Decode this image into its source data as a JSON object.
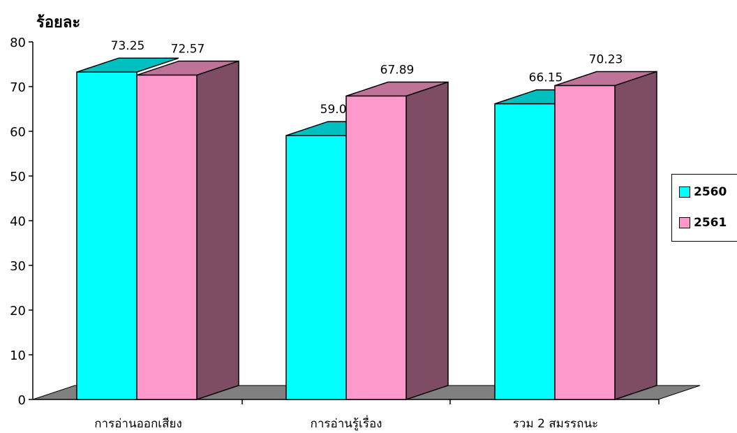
{
  "chart_data": {
    "type": "bar",
    "ylabel": "ร้อยละ",
    "ylim": [
      0,
      80
    ],
    "yticks": [
      0,
      10,
      20,
      30,
      40,
      50,
      60,
      70,
      80
    ],
    "categories": [
      "การอ่านออกเสียง",
      "การอ่านรู้เรื่อง",
      "รวม 2 สมรรถนะ"
    ],
    "series": [
      {
        "name": "2560",
        "values": [
          73.25,
          59.05,
          66.15
        ],
        "labels": [
          "73.25",
          "59.05",
          "66.15"
        ]
      },
      {
        "name": "2561",
        "values": [
          72.57,
          67.89,
          70.23
        ],
        "labels": [
          "72.57",
          "67.89",
          "70.23"
        ]
      }
    ],
    "three_d": true,
    "legend_position": "right"
  },
  "colors": {
    "series_2560_front": "#00FFFF",
    "series_2560_top": "#00BFBF",
    "series_2561_front": "#FF99CC",
    "series_2561_top": "#BF7399",
    "series_2561_side": "#7F4C66",
    "floor": "#808080"
  }
}
